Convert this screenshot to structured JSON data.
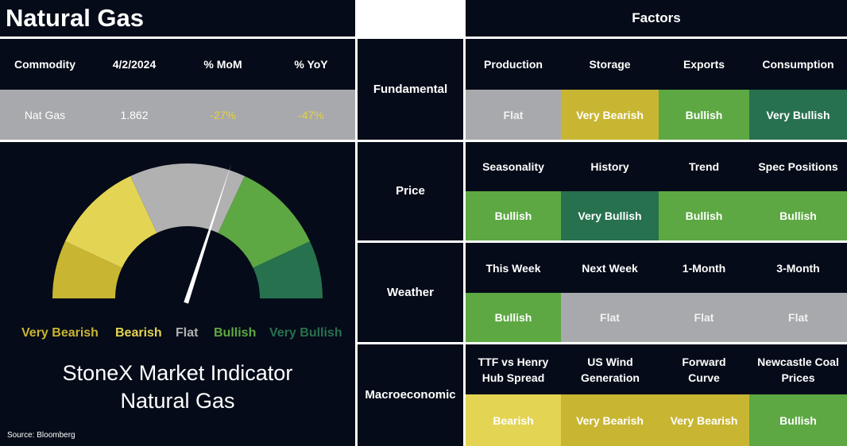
{
  "title": "Natural Gas",
  "factors_title": "Factors",
  "commodity_table": {
    "headers": [
      "Commodity",
      "4/2/2024",
      "% MoM",
      "% YoY"
    ],
    "row": [
      "Nat Gas",
      "1.862",
      "-27%",
      "-47%"
    ]
  },
  "gauge": {
    "labels": [
      "Very Bearish",
      "Bearish",
      "Flat",
      "Bullish",
      "Very Bullish"
    ],
    "colors": {
      "very_bearish": "#c8b532",
      "bearish": "#e3d453",
      "flat": "#b1b1b1",
      "bullish": "#5da843",
      "very_bullish": "#27714f"
    },
    "title_line1": "StoneX Market Indicator",
    "title_line2": "Natural Gas",
    "source": "Source: Bloomberg"
  },
  "chart_data": {
    "type": "gauge",
    "scale": [
      "Very Bearish",
      "Bearish",
      "Flat",
      "Bullish",
      "Very Bullish"
    ],
    "segment_spans_degrees": [
      25,
      40,
      50,
      40,
      25
    ],
    "needle_position": "Flat",
    "needle_angle_degrees": 72
  },
  "factor_groups": [
    {
      "name": "Fundamental",
      "factors": [
        {
          "label": "Production",
          "signal": "Flat"
        },
        {
          "label": "Storage",
          "signal": "Very Bearish"
        },
        {
          "label": "Exports",
          "signal": "Bullish"
        },
        {
          "label": "Consumption",
          "signal": "Very Bullish"
        }
      ]
    },
    {
      "name": "Price",
      "factors": [
        {
          "label": "Seasonality",
          "signal": "Bullish"
        },
        {
          "label": "History",
          "signal": "Very Bullish"
        },
        {
          "label": "Trend",
          "signal": "Bullish"
        },
        {
          "label": "Spec Positions",
          "signal": "Bullish"
        }
      ]
    },
    {
      "name": "Weather",
      "factors": [
        {
          "label": "This Week",
          "signal": "Bullish"
        },
        {
          "label": "Next Week",
          "signal": "Flat"
        },
        {
          "label": "1-Month",
          "signal": "Flat"
        },
        {
          "label": "3-Month",
          "signal": "Flat"
        }
      ]
    },
    {
      "name": "Macroeconomic",
      "factors": [
        {
          "label": "TTF vs Henry Hub Spread",
          "signal": "Bearish"
        },
        {
          "label": "US Wind Generation",
          "signal": "Very Bearish"
        },
        {
          "label": "Forward Curve",
          "signal": "Very Bearish"
        },
        {
          "label": "Newcastle Coal Prices",
          "signal": "Bullish"
        }
      ]
    }
  ],
  "signal_colors": {
    "Flat": "#a7a9ac",
    "Very Bearish": "#c8b532",
    "Bearish": "#e3d453",
    "Bullish": "#5da843",
    "Very Bullish": "#27714f"
  }
}
